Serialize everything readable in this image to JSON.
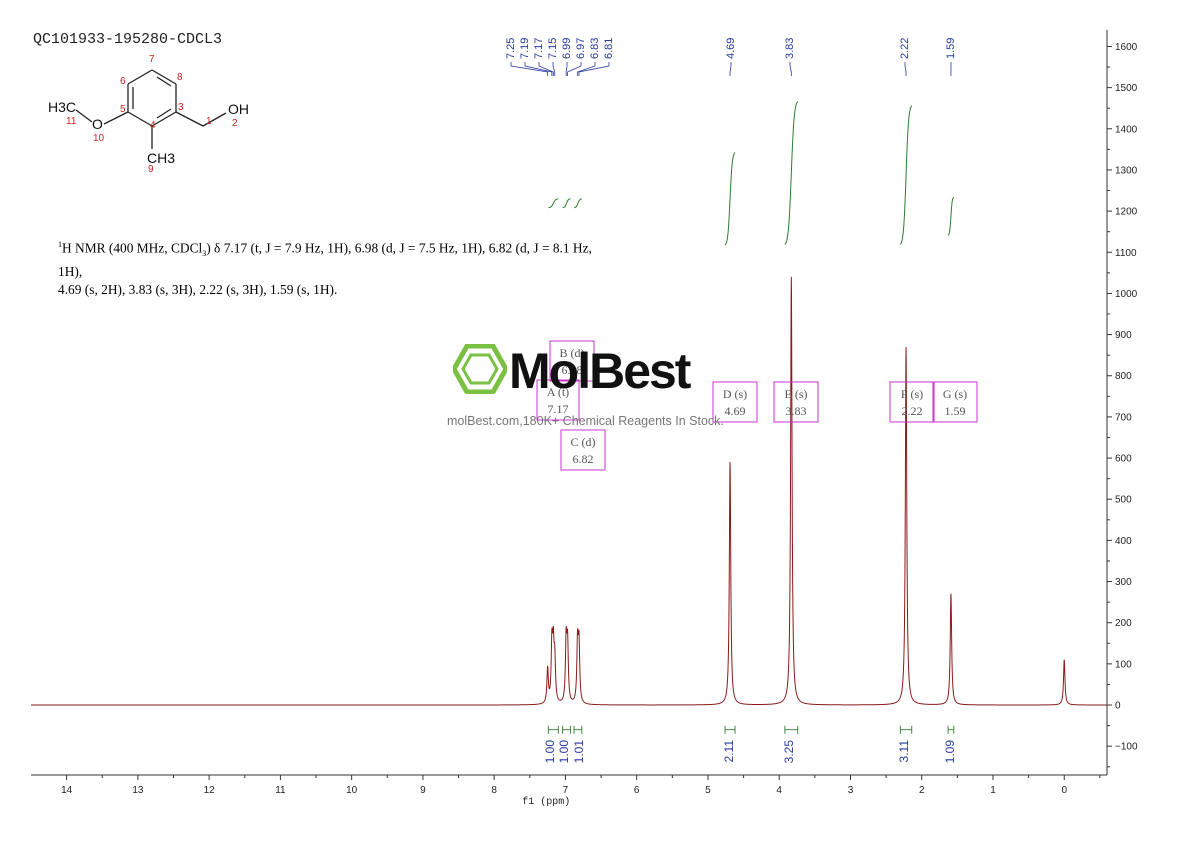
{
  "sample_id": "QC101933-195280-CDCL3",
  "nmr_description": {
    "prefix": "H NMR (400 MHz, CDCl",
    "sup": "1",
    "line1_rest": ") δ 7.17 (t, J = 7.9 Hz, 1H), 6.98 (d, J = 7.5 Hz, 1H), 6.82 (d, J = 8.1 Hz, 1H),",
    "line2": "4.69 (s, 2H), 3.83 (s, 3H), 2.22 (s, 3H), 1.59 (s, 1H)."
  },
  "structure": {
    "atom_labels": [
      "H3C",
      "O",
      "OH",
      "CH3"
    ],
    "atom_numbers": [
      "1",
      "2",
      "3",
      "4",
      "5",
      "6",
      "7",
      "8",
      "9",
      "10",
      "11"
    ]
  },
  "watermark": {
    "brand": "MolBest",
    "tagline": "molBest.com,180K+ Chemical Reagents In Stock."
  },
  "colors": {
    "spectrum": "#8b1a1a",
    "integral": "#2e7d2e",
    "peak_label": "#2a3aa0",
    "multiplet_box": "#cc33cc",
    "axis": "#333333",
    "watermark_green": "#7ac143"
  },
  "chart_data": {
    "type": "line",
    "title": "",
    "xlabel": "f1 (ppm)",
    "ylabel": "",
    "xlim": [
      14.5,
      -0.6
    ],
    "ylim": [
      -170,
      1640
    ],
    "x_ticks": [
      14,
      13,
      12,
      11,
      10,
      9,
      8,
      7,
      6,
      5,
      4,
      3,
      2,
      1,
      0
    ],
    "y_ticks": [
      -100,
      0,
      100,
      200,
      300,
      400,
      500,
      600,
      700,
      800,
      900,
      1000,
      1100,
      1200,
      1300,
      1400,
      1500,
      1600
    ],
    "peaks": [
      {
        "ppm": 7.25,
        "intensity": 85
      },
      {
        "ppm": 7.19,
        "intensity": 140
      },
      {
        "ppm": 7.17,
        "intensity": 125
      },
      {
        "ppm": 7.15,
        "intensity": 100
      },
      {
        "ppm": 6.99,
        "intensity": 150
      },
      {
        "ppm": 6.97,
        "intensity": 140
      },
      {
        "ppm": 6.83,
        "intensity": 145
      },
      {
        "ppm": 6.81,
        "intensity": 140
      },
      {
        "ppm": 4.69,
        "intensity": 590
      },
      {
        "ppm": 3.83,
        "intensity": 1040
      },
      {
        "ppm": 2.22,
        "intensity": 870
      },
      {
        "ppm": 1.59,
        "intensity": 270
      },
      {
        "ppm": 0.0,
        "intensity": 110
      }
    ],
    "peak_labels": [
      "7.25",
      "7.19",
      "7.17",
      "7.15",
      "6.99",
      "6.97",
      "6.83",
      "6.81",
      "4.69",
      "3.83",
      "2.22",
      "1.59"
    ],
    "multiplets": [
      {
        "id": "A",
        "type": "t",
        "shift": "7.17"
      },
      {
        "id": "B",
        "type": "d",
        "shift": "6.98"
      },
      {
        "id": "C",
        "type": "d",
        "shift": "6.82"
      },
      {
        "id": "D",
        "type": "s",
        "shift": "4.69"
      },
      {
        "id": "E",
        "type": "s",
        "shift": "3.83"
      },
      {
        "id": "F",
        "type": "s",
        "shift": "2.22"
      },
      {
        "id": "G",
        "type": "s",
        "shift": "1.59"
      }
    ],
    "integrals": [
      {
        "from": 7.24,
        "to": 7.1,
        "value": "1.00"
      },
      {
        "from": 7.04,
        "to": 6.93,
        "value": "1.00"
      },
      {
        "from": 6.88,
        "to": 6.77,
        "value": "1.01"
      },
      {
        "from": 4.76,
        "to": 4.62,
        "value": "2.11"
      },
      {
        "from": 3.92,
        "to": 3.74,
        "value": "3.25"
      },
      {
        "from": 2.3,
        "to": 2.14,
        "value": "3.11"
      },
      {
        "from": 1.63,
        "to": 1.55,
        "value": "1.09"
      }
    ]
  }
}
